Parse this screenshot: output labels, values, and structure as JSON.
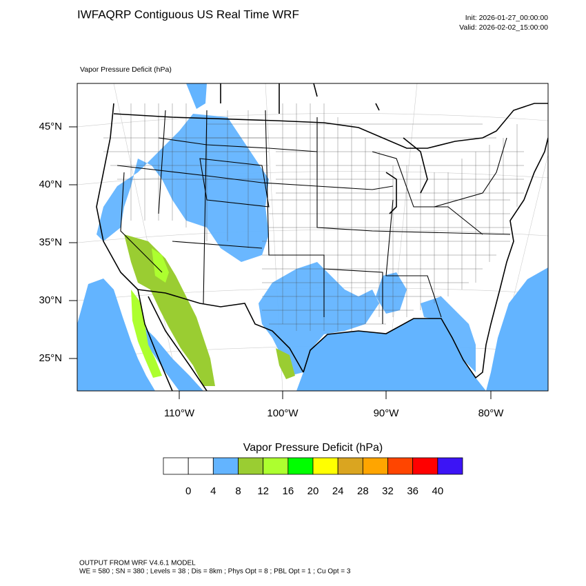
{
  "header": {
    "title": "IWFAQRP Contiguous US Real Time WRF",
    "init": "Init: 2026-01-27_00:00:00",
    "valid": "Valid: 2026-02-02_15:00:00"
  },
  "map": {
    "field_label": "Vapor Pressure Deficit   (hPa)",
    "lat_labels": [
      "45°N",
      "40°N",
      "35°N",
      "30°N",
      "25°N"
    ],
    "lon_labels": [
      "110°W",
      "100°W",
      "90°W",
      "80°W"
    ]
  },
  "colorbar": {
    "title": "Vapor Pressure Deficit  (hPa)",
    "colors": [
      "#ffffff",
      "#ffffff",
      "#63b4ff",
      "#9acd32",
      "#adff2f",
      "#00ff00",
      "#ffff00",
      "#daa520",
      "#ffa500",
      "#ff4500",
      "#ff0000",
      "#3c14f5"
    ],
    "labels": [
      "0",
      "4",
      "8",
      "12",
      "16",
      "20",
      "24",
      "28",
      "32",
      "36",
      "40"
    ]
  },
  "footer": {
    "line1": "OUTPUT FROM WRF V4.6.1 MODEL",
    "line2": "WE = 580 ; SN = 380 ; Levels = 38 ; Dis = 8km ; Phys Opt = 8 ; PBL Opt = 1 ; Cu Opt = 3"
  }
}
